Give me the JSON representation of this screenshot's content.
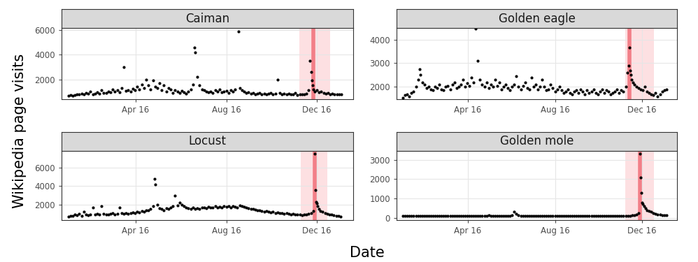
{
  "figure": {
    "x_label": "Date",
    "y_label": "Wikipedia page visits"
  },
  "chart_data": [
    {
      "type": "scatter",
      "title": "Caiman",
      "color": "#000000",
      "grid": true,
      "xlim": [
        -9,
        384
      ],
      "xticks": [
        {
          "value": 91,
          "label": "Apr 16"
        },
        {
          "value": 213,
          "label": "Aug 16"
        },
        {
          "value": 335,
          "label": "Dec 16"
        }
      ],
      "ylim": [
        390,
        6160
      ],
      "yticks": [
        2000,
        4000,
        6000
      ],
      "broadcast_day": 330,
      "broadcast_window": [
        311,
        353
      ],
      "x": [
        0,
        3,
        6,
        9,
        12,
        15,
        18,
        21,
        24,
        27,
        30,
        33,
        36,
        39,
        42,
        45,
        48,
        51,
        54,
        57,
        60,
        63,
        66,
        69,
        72,
        75,
        78,
        81,
        84,
        87,
        90,
        93,
        96,
        99,
        102,
        105,
        108,
        111,
        114,
        117,
        120,
        123,
        126,
        129,
        132,
        135,
        138,
        141,
        144,
        147,
        150,
        153,
        156,
        159,
        162,
        165,
        168,
        170,
        171,
        174,
        177,
        180,
        183,
        186,
        189,
        192,
        195,
        198,
        201,
        204,
        207,
        210,
        213,
        216,
        219,
        222,
        225,
        229,
        231,
        234,
        237,
        240,
        243,
        246,
        249,
        252,
        255,
        258,
        261,
        264,
        267,
        270,
        273,
        276,
        279,
        282,
        285,
        288,
        291,
        294,
        297,
        300,
        303,
        306,
        309,
        312,
        315,
        318,
        321,
        324,
        326,
        327,
        328,
        329,
        330,
        332,
        335,
        338,
        341,
        344,
        347,
        350,
        353,
        356,
        359,
        362,
        365,
        368
      ],
      "values": [
        700,
        720,
        690,
        750,
        800,
        780,
        820,
        760,
        900,
        850,
        1000,
        800,
        870,
        950,
        820,
        1100,
        900,
        880,
        1000,
        950,
        1200,
        1000,
        1100,
        950,
        1300,
        3000,
        1050,
        1150,
        1000,
        1250,
        1100,
        1400,
        1200,
        1600,
        1300,
        2000,
        1500,
        1200,
        1900,
        1400,
        1300,
        1700,
        1100,
        1500,
        1000,
        1300,
        1200,
        900,
        1100,
        1000,
        900,
        1050,
        950,
        850,
        1000,
        1200,
        1600,
        4600,
        4200,
        2200,
        1500,
        1200,
        1100,
        1000,
        950,
        1000,
        900,
        1100,
        1000,
        1200,
        950,
        1000,
        1050,
        900,
        1100,
        1000,
        1200,
        5900,
        1300,
        1100,
        1000,
        900,
        950,
        850,
        900,
        800,
        850,
        900,
        800,
        850,
        780,
        820,
        900,
        800,
        850,
        2000,
        900,
        800,
        850,
        780,
        820,
        800,
        760,
        900,
        750,
        800,
        760,
        780,
        820,
        1100,
        3500,
        2600,
        1900,
        1500,
        1200,
        1000,
        1100,
        950,
        1000,
        900,
        850,
        900,
        800,
        820,
        780,
        800,
        760,
        780
      ]
    },
    {
      "type": "scatter",
      "title": "Golden eagle",
      "color": "#000000",
      "grid": true,
      "xlim": [
        -9,
        384
      ],
      "xticks": [
        {
          "value": 91,
          "label": "Apr 16"
        },
        {
          "value": 213,
          "label": "Aug 16"
        },
        {
          "value": 335,
          "label": "Dec 16"
        }
      ],
      "ylim": [
        1480,
        4490
      ],
      "yticks": [
        2000,
        3000,
        4000
      ],
      "broadcast_day": 317,
      "broadcast_window": [
        311,
        352
      ],
      "x": [
        0,
        3,
        6,
        9,
        12,
        15,
        18,
        21,
        23,
        24,
        27,
        30,
        33,
        36,
        39,
        42,
        45,
        48,
        51,
        54,
        57,
        60,
        63,
        66,
        69,
        72,
        75,
        78,
        81,
        84,
        87,
        90,
        93,
        96,
        99,
        102,
        105,
        108,
        111,
        114,
        117,
        120,
        123,
        126,
        129,
        132,
        135,
        138,
        141,
        144,
        147,
        150,
        153,
        156,
        159,
        162,
        165,
        168,
        171,
        174,
        177,
        180,
        183,
        186,
        189,
        192,
        195,
        198,
        201,
        204,
        207,
        210,
        213,
        216,
        219,
        222,
        225,
        228,
        231,
        234,
        237,
        240,
        243,
        246,
        249,
        252,
        255,
        258,
        261,
        264,
        267,
        270,
        273,
        276,
        279,
        282,
        285,
        288,
        291,
        294,
        297,
        300,
        303,
        306,
        309,
        312,
        314,
        316,
        317,
        318,
        319,
        320,
        322,
        324,
        327,
        330,
        333,
        336,
        339,
        342,
        345,
        348,
        351,
        354,
        357,
        360,
        363,
        366,
        369
      ],
      "values": [
        1550,
        1650,
        1700,
        1600,
        1750,
        1800,
        2000,
        2300,
        2750,
        2500,
        2200,
        2100,
        1950,
        2000,
        1900,
        1850,
        2000,
        1950,
        2100,
        1900,
        1850,
        2000,
        2050,
        1900,
        2100,
        2200,
        1950,
        2000,
        2100,
        2300,
        2000,
        2150,
        2050,
        2400,
        2200,
        4450,
        3100,
        2300,
        2100,
        2000,
        2200,
        1950,
        2100,
        2000,
        2300,
        2050,
        2200,
        1900,
        2000,
        2100,
        1950,
        1850,
        2000,
        2100,
        2450,
        2000,
        1900,
        2050,
        2200,
        1950,
        1900,
        2400,
        2000,
        2100,
        1900,
        2000,
        2300,
        2000,
        1850,
        1900,
        2100,
        1950,
        1800,
        1900,
        2000,
        1850,
        1750,
        1800,
        1900,
        1750,
        1700,
        1800,
        1850,
        1750,
        1900,
        1800,
        1700,
        1850,
        1750,
        1800,
        1900,
        1750,
        1700,
        1800,
        1900,
        1750,
        1850,
        1800,
        1700,
        1750,
        1800,
        1900,
        1750,
        1850,
        1800,
        2000,
        2600,
        2900,
        3650,
        2700,
        2500,
        2300,
        2200,
        2100,
        2000,
        1950,
        1900,
        1850,
        2000,
        1800,
        1750,
        1700,
        1650,
        1750,
        1600,
        1700,
        1800,
        1850,
        1900
      ]
    },
    {
      "type": "scatter",
      "title": "Locust",
      "color": "#000000",
      "grid": true,
      "xlim": [
        -9,
        384
      ],
      "xticks": [
        {
          "value": 91,
          "label": "Apr 16"
        },
        {
          "value": 213,
          "label": "Aug 16"
        },
        {
          "value": 335,
          "label": "Dec 16"
        }
      ],
      "ylim": [
        310,
        7840
      ],
      "yticks": [
        2000,
        4000,
        6000
      ],
      "broadcast_day": 332,
      "broadcast_window": [
        313,
        349
      ],
      "x": [
        0,
        3,
        6,
        9,
        12,
        15,
        18,
        21,
        24,
        27,
        30,
        33,
        36,
        39,
        42,
        45,
        48,
        51,
        54,
        57,
        60,
        63,
        66,
        69,
        72,
        75,
        78,
        81,
        84,
        87,
        90,
        93,
        96,
        99,
        102,
        105,
        108,
        111,
        114,
        116,
        117,
        120,
        123,
        126,
        129,
        132,
        135,
        138,
        141,
        144,
        147,
        150,
        153,
        156,
        159,
        162,
        165,
        168,
        171,
        174,
        177,
        180,
        183,
        186,
        189,
        192,
        195,
        198,
        201,
        204,
        207,
        210,
        213,
        216,
        219,
        222,
        225,
        228,
        231,
        234,
        237,
        240,
        243,
        246,
        249,
        252,
        255,
        258,
        261,
        264,
        267,
        270,
        273,
        276,
        279,
        282,
        285,
        288,
        291,
        294,
        297,
        300,
        303,
        306,
        309,
        312,
        315,
        318,
        321,
        324,
        327,
        330,
        332,
        333,
        334,
        335,
        336,
        338,
        340,
        343,
        346,
        349,
        352,
        355,
        358,
        361,
        364,
        367
      ],
      "values": [
        700,
        800,
        750,
        900,
        850,
        1000,
        800,
        1200,
        900,
        850,
        950,
        1700,
        900,
        1000,
        950,
        1800,
        1000,
        900,
        950,
        1000,
        1100,
        950,
        1000,
        1700,
        1050,
        1000,
        1100,
        1000,
        1050,
        1150,
        1100,
        1200,
        1150,
        1300,
        1200,
        1400,
        1350,
        1500,
        1800,
        4800,
        4200,
        2000,
        1600,
        1500,
        1400,
        1600,
        1500,
        1700,
        1800,
        3000,
        1900,
        2200,
        2000,
        1800,
        1700,
        1600,
        1500,
        1700,
        1550,
        1600,
        1500,
        1650,
        1700,
        1600,
        1750,
        1650,
        1700,
        1800,
        1650,
        1750,
        1700,
        1800,
        1750,
        1850,
        1700,
        1800,
        1750,
        1650,
        1900,
        1800,
        1750,
        1700,
        1600,
        1550,
        1500,
        1450,
        1400,
        1350,
        1300,
        1250,
        1300,
        1200,
        1150,
        1250,
        1100,
        1150,
        1050,
        1100,
        1000,
        1050,
        1000,
        950,
        1000,
        900,
        950,
        900,
        850,
        900,
        950,
        1000,
        1100,
        1300,
        7500,
        3600,
        2300,
        2100,
        1800,
        1500,
        1300,
        1200,
        1100,
        1000,
        950,
        900,
        850,
        800,
        750,
        700
      ]
    },
    {
      "type": "scatter",
      "title": "Golden mole",
      "color": "#000000",
      "grid": true,
      "xlim": [
        -9,
        384
      ],
      "xticks": [
        {
          "value": 91,
          "label": "Apr 16"
        },
        {
          "value": 213,
          "label": "Aug 16"
        },
        {
          "value": 335,
          "label": "Dec 16"
        }
      ],
      "ylim": [
        -120,
        3460
      ],
      "yticks": [
        0,
        1000,
        2000,
        3000
      ],
      "broadcast_day": 332,
      "broadcast_window": [
        311,
        352
      ],
      "x": [
        0,
        3,
        6,
        9,
        12,
        15,
        18,
        21,
        24,
        27,
        30,
        33,
        36,
        39,
        42,
        45,
        48,
        51,
        54,
        57,
        60,
        63,
        66,
        69,
        72,
        75,
        78,
        81,
        84,
        87,
        90,
        93,
        96,
        99,
        102,
        105,
        108,
        111,
        114,
        117,
        120,
        123,
        126,
        129,
        132,
        135,
        138,
        141,
        144,
        147,
        150,
        153,
        156,
        159,
        162,
        165,
        168,
        171,
        174,
        177,
        180,
        183,
        186,
        189,
        192,
        195,
        198,
        201,
        204,
        207,
        210,
        213,
        216,
        219,
        222,
        225,
        228,
        231,
        234,
        237,
        240,
        243,
        246,
        249,
        252,
        255,
        258,
        261,
        264,
        267,
        270,
        273,
        276,
        279,
        282,
        285,
        288,
        291,
        294,
        297,
        300,
        303,
        306,
        309,
        312,
        315,
        318,
        321,
        324,
        327,
        330,
        332,
        333,
        334,
        335,
        336,
        338,
        340,
        342,
        345,
        348,
        351,
        354,
        357,
        360,
        363,
        366,
        369
      ],
      "values": [
        80,
        90,
        85,
        95,
        100,
        90,
        85,
        100,
        95,
        90,
        105,
        100,
        95,
        90,
        100,
        110,
        95,
        100,
        90,
        95,
        105,
        100,
        95,
        110,
        100,
        90,
        105,
        100,
        95,
        110,
        100,
        105,
        95,
        100,
        110,
        100,
        105,
        95,
        100,
        110,
        120,
        110,
        105,
        100,
        115,
        105,
        110,
        100,
        105,
        115,
        110,
        150,
        300,
        200,
        130,
        110,
        100,
        95,
        105,
        100,
        110,
        95,
        100,
        105,
        90,
        100,
        95,
        105,
        100,
        90,
        95,
        100,
        105,
        95,
        100,
        90,
        95,
        100,
        105,
        95,
        90,
        100,
        95,
        105,
        100,
        95,
        100,
        110,
        105,
        100,
        95,
        100,
        105,
        110,
        115,
        100,
        105,
        110,
        100,
        105,
        110,
        105,
        100,
        110,
        105,
        100,
        110,
        120,
        130,
        160,
        250,
        3300,
        2100,
        1300,
        800,
        700,
        600,
        500,
        400,
        350,
        300,
        250,
        200,
        180,
        160,
        150,
        140,
        130
      ]
    }
  ]
}
